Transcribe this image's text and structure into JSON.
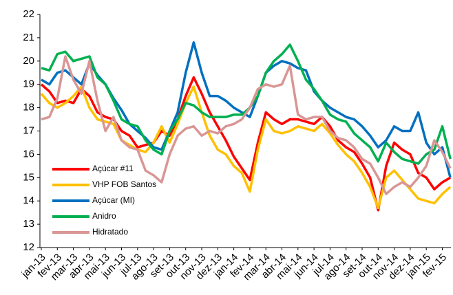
{
  "chart_data": {
    "type": "line",
    "categories": [
      "jan-13",
      null,
      "fev-13",
      null,
      "mar-13",
      null,
      "abr-13",
      null,
      "mai-13",
      null,
      "jun-13",
      null,
      "jul-13",
      null,
      "ago-13",
      null,
      "set-13",
      null,
      "out-13",
      null,
      "nov-13",
      null,
      "dez-13",
      null,
      "jan-14",
      null,
      "fev-14",
      null,
      "mar-14",
      null,
      "abr-14",
      null,
      "mai-14",
      null,
      "jun-14",
      null,
      "jul-14",
      null,
      "ago-14",
      null,
      "set-14",
      null,
      "out-14",
      null,
      "nov-14",
      null,
      "dez-14",
      null,
      "jan-15",
      null,
      "fev-15",
      null
    ],
    "series": [
      {
        "name": "Açúcar #11",
        "color": "#ff0000",
        "values": [
          19.0,
          18.7,
          18.2,
          18.3,
          18.2,
          18.8,
          18.5,
          17.8,
          17.6,
          17.5,
          17.0,
          16.8,
          16.3,
          16.4,
          16.5,
          17.0,
          16.8,
          17.5,
          18.5,
          19.3,
          18.6,
          17.8,
          17.2,
          16.6,
          15.9,
          15.4,
          14.9,
          16.5,
          17.8,
          17.5,
          17.3,
          17.5,
          17.5,
          17.4,
          17.3,
          17.6,
          17.2,
          16.6,
          16.3,
          16.1,
          15.6,
          15.0,
          13.6,
          15.5,
          16.5,
          16.2,
          16.0,
          15.2,
          15.0,
          14.5,
          14.8,
          15.0
        ]
      },
      {
        "name": "VHP FOB Santos",
        "color": "#ffc000",
        "values": [
          18.6,
          18.2,
          18.0,
          18.2,
          18.5,
          18.9,
          18.0,
          17.5,
          17.4,
          17.3,
          16.6,
          16.4,
          16.2,
          16.1,
          16.5,
          17.2,
          16.5,
          17.3,
          18.2,
          18.9,
          17.8,
          16.8,
          16.2,
          16.0,
          15.5,
          15.2,
          14.4,
          16.2,
          17.5,
          17.0,
          16.9,
          17.0,
          17.2,
          17.1,
          17.0,
          17.3,
          16.9,
          16.4,
          16.0,
          15.7,
          15.2,
          14.6,
          13.7,
          15.0,
          15.3,
          14.9,
          14.5,
          14.1,
          14.0,
          13.9,
          14.3,
          14.6
        ]
      },
      {
        "name": "Açúcar (MI)",
        "color": "#0070c0",
        "values": [
          19.2,
          19.0,
          19.5,
          19.6,
          19.3,
          19.0,
          19.9,
          19.4,
          19.0,
          18.4,
          17.9,
          17.3,
          17.0,
          16.7,
          16.3,
          16.2,
          17.0,
          17.8,
          19.5,
          20.8,
          19.5,
          18.5,
          18.5,
          18.3,
          18.0,
          17.8,
          17.6,
          18.5,
          19.5,
          19.8,
          20.0,
          19.9,
          19.7,
          19.6,
          18.7,
          18.3,
          18.0,
          17.8,
          17.6,
          17.5,
          17.2,
          16.8,
          16.3,
          16.6,
          17.2,
          17.0,
          17.0,
          17.8,
          16.5,
          16.0,
          16.3,
          15.0
        ]
      },
      {
        "name": "Anidro",
        "color": "#00b050",
        "values": [
          19.7,
          19.6,
          20.3,
          20.4,
          20.0,
          20.1,
          20.2,
          19.3,
          19.0,
          18.3,
          17.5,
          17.3,
          17.2,
          16.6,
          16.2,
          16.0,
          17.0,
          17.5,
          18.2,
          18.1,
          17.8,
          17.6,
          17.6,
          17.6,
          17.7,
          17.7,
          18.0,
          18.5,
          19.5,
          20.0,
          20.3,
          20.7,
          20.0,
          19.2,
          18.8,
          18.3,
          17.7,
          17.5,
          17.4,
          16.9,
          16.6,
          16.3,
          15.7,
          16.5,
          16.1,
          15.8,
          15.7,
          15.6,
          16.0,
          16.2,
          17.2,
          15.8
        ]
      },
      {
        "name": "Hidratado",
        "color": "#d99694",
        "values": [
          17.5,
          17.6,
          18.4,
          20.2,
          19.2,
          18.6,
          20.0,
          18.3,
          17.0,
          17.6,
          16.6,
          16.3,
          16.2,
          15.3,
          15.1,
          14.8,
          16.0,
          16.8,
          17.1,
          17.2,
          16.8,
          17.0,
          16.9,
          17.2,
          17.3,
          17.5,
          18.0,
          18.8,
          19.0,
          18.9,
          19.0,
          19.8,
          17.7,
          17.5,
          17.6,
          17.6,
          17.0,
          16.7,
          16.6,
          16.3,
          15.8,
          15.6,
          15.0,
          14.3,
          14.6,
          14.8,
          14.6,
          15.0,
          15.5,
          16.6,
          16.1,
          15.4
        ]
      }
    ],
    "ylim": [
      12,
      22
    ],
    "yticks": [
      12,
      13,
      14,
      15,
      16,
      17,
      18,
      19,
      20,
      21,
      22
    ],
    "grid": false,
    "legend": "lower-left"
  }
}
